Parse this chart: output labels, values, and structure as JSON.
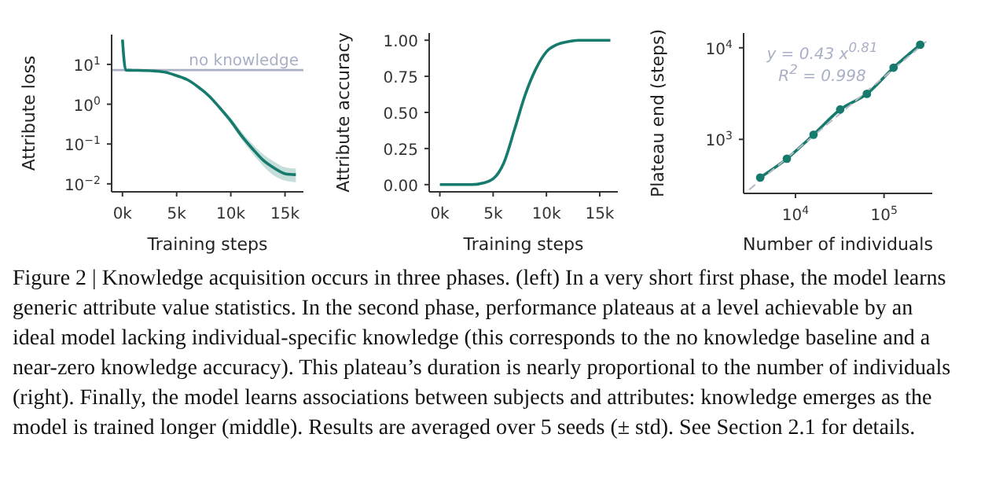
{
  "chart_data": [
    {
      "type": "line",
      "xlabel": "Training steps",
      "ylabel": "Attribute loss",
      "log": "y",
      "marker": "none",
      "line_style": "solid",
      "x": [
        0,
        300,
        1000,
        2000,
        3000,
        4000,
        5000,
        6000,
        7000,
        8000,
        9000,
        10000,
        11000,
        12000,
        13000,
        14000,
        15000,
        16000
      ],
      "series": [
        {
          "color": "#167a6c",
          "values": [
            42,
            7.2,
            7.1,
            7.0,
            6.8,
            6.3,
            5.2,
            4.1,
            2.7,
            1.6,
            0.8,
            0.38,
            0.16,
            0.076,
            0.039,
            0.025,
            0.018,
            0.017
          ],
          "lower": [
            42,
            7.2,
            7.1,
            7.0,
            6.8,
            6.3,
            5.2,
            4.1,
            2.7,
            1.6,
            0.7,
            0.32,
            0.13,
            0.058,
            0.028,
            0.016,
            0.012,
            0.011
          ],
          "upper": [
            42,
            7.2,
            7.1,
            7.0,
            6.8,
            6.3,
            5.2,
            4.1,
            2.7,
            1.6,
            0.9,
            0.45,
            0.2,
            0.1,
            0.055,
            0.036,
            0.026,
            0.024
          ]
        }
      ],
      "xlim": [
        -1000,
        16700
      ],
      "xticks": [
        {
          "value": 0,
          "label": "0k"
        },
        {
          "value": 5000,
          "label": "5k"
        },
        {
          "value": 10000,
          "label": "10k"
        },
        {
          "value": 15000,
          "label": "15k"
        }
      ],
      "ylim": [
        0.0063,
        56
      ],
      "yticks": [
        {
          "value": 0.01,
          "label": "10$^{−2}$"
        },
        {
          "value": 0.1,
          "label": "10$^{−1}$"
        },
        {
          "value": 1,
          "label": "10$^{0}$"
        },
        {
          "value": 10,
          "label": "10$^{1}$"
        }
      ],
      "ref_lines": [
        {
          "axis": "y",
          "value": 7.2,
          "label": "no knowledge",
          "color": "#a9b0c6"
        }
      ],
      "annotations": [
        "Figure 2 | Knowledge acquisition occurs in three phases. (left) In a very short first phase, the model learns generic attribute value statistics. In the second phase, performance plateaus at a level achievable by an ideal model lacking individual-specific knowledge (this corresponds to the no knowledge baseline and a near-zero knowledge accuracy). This plateau’s duration is nearly proportional to the number of individuals (right). Finally, the model learns associations between subjects and attributes: knowledge emerges as the model is trained longer (middle). Results are averaged over 5 seeds (± std). See Section 2.1 for details."
      ]
    },
    {
      "type": "line",
      "xlabel": "Training steps",
      "ylabel": "Attribute accuracy",
      "marker": "none",
      "line_style": "solid",
      "x": [
        0,
        1000,
        2000,
        3000,
        4000,
        5000,
        6000,
        7000,
        8000,
        9000,
        10000,
        11000,
        12000,
        13000,
        14000,
        15000,
        16000
      ],
      "series": [
        {
          "color": "#167a6c",
          "values": [
            0,
            0,
            0,
            0,
            0.01,
            0.04,
            0.15,
            0.38,
            0.62,
            0.8,
            0.92,
            0.97,
            0.99,
            1,
            1,
            1,
            1
          ]
        }
      ],
      "xlim": [
        -1000,
        16700
      ],
      "xticks": [
        {
          "value": 0,
          "label": "0k"
        },
        {
          "value": 5000,
          "label": "5k"
        },
        {
          "value": 10000,
          "label": "10k"
        },
        {
          "value": 15000,
          "label": "15k"
        }
      ],
      "ylim": [
        -0.05,
        1.05
      ],
      "yticks": [
        {
          "value": 0,
          "label": "0.00"
        },
        {
          "value": 0.25,
          "label": "0.25"
        },
        {
          "value": 0.5,
          "label": "0.50"
        },
        {
          "value": 0.75,
          "label": "0.75"
        },
        {
          "value": 1,
          "label": "1.00"
        }
      ]
    },
    {
      "type": "line",
      "xlabel": "Number of individuals",
      "ylabel": "Plateau end (steps)",
      "log": "xy",
      "marker": "circle",
      "line_style": "solid",
      "series": [
        {
          "color": "#167a6c",
          "x": [
            4000,
            8000,
            16000,
            32000,
            64000,
            128000,
            256000
          ],
          "values": [
            383,
            615,
            1125,
            2120,
            3140,
            6070,
            10800
          ]
        },
        {
          "type": "line",
          "color": "#b4bac6",
          "line_style": "dashed",
          "marker": "none",
          "x": [
            3000,
            300000
          ],
          "values": [
            282,
            11700
          ]
        }
      ],
      "xlim": [
        2600,
        350000
      ],
      "xticks": [
        {
          "value": 10000,
          "label": "10$^{4}$"
        },
        {
          "value": 100000,
          "label": "10$^{5}$"
        }
      ],
      "ylim": [
        257,
        14500
      ],
      "yticks": [
        {
          "value": 1000,
          "label": "10$^{3}$"
        },
        {
          "value": 10000,
          "label": "10$^{4}$"
        }
      ],
      "annotations": [
        "y = 0.43 x$^{0.81}$",
        "R$^{2}$ = 0.998"
      ]
    }
  ]
}
